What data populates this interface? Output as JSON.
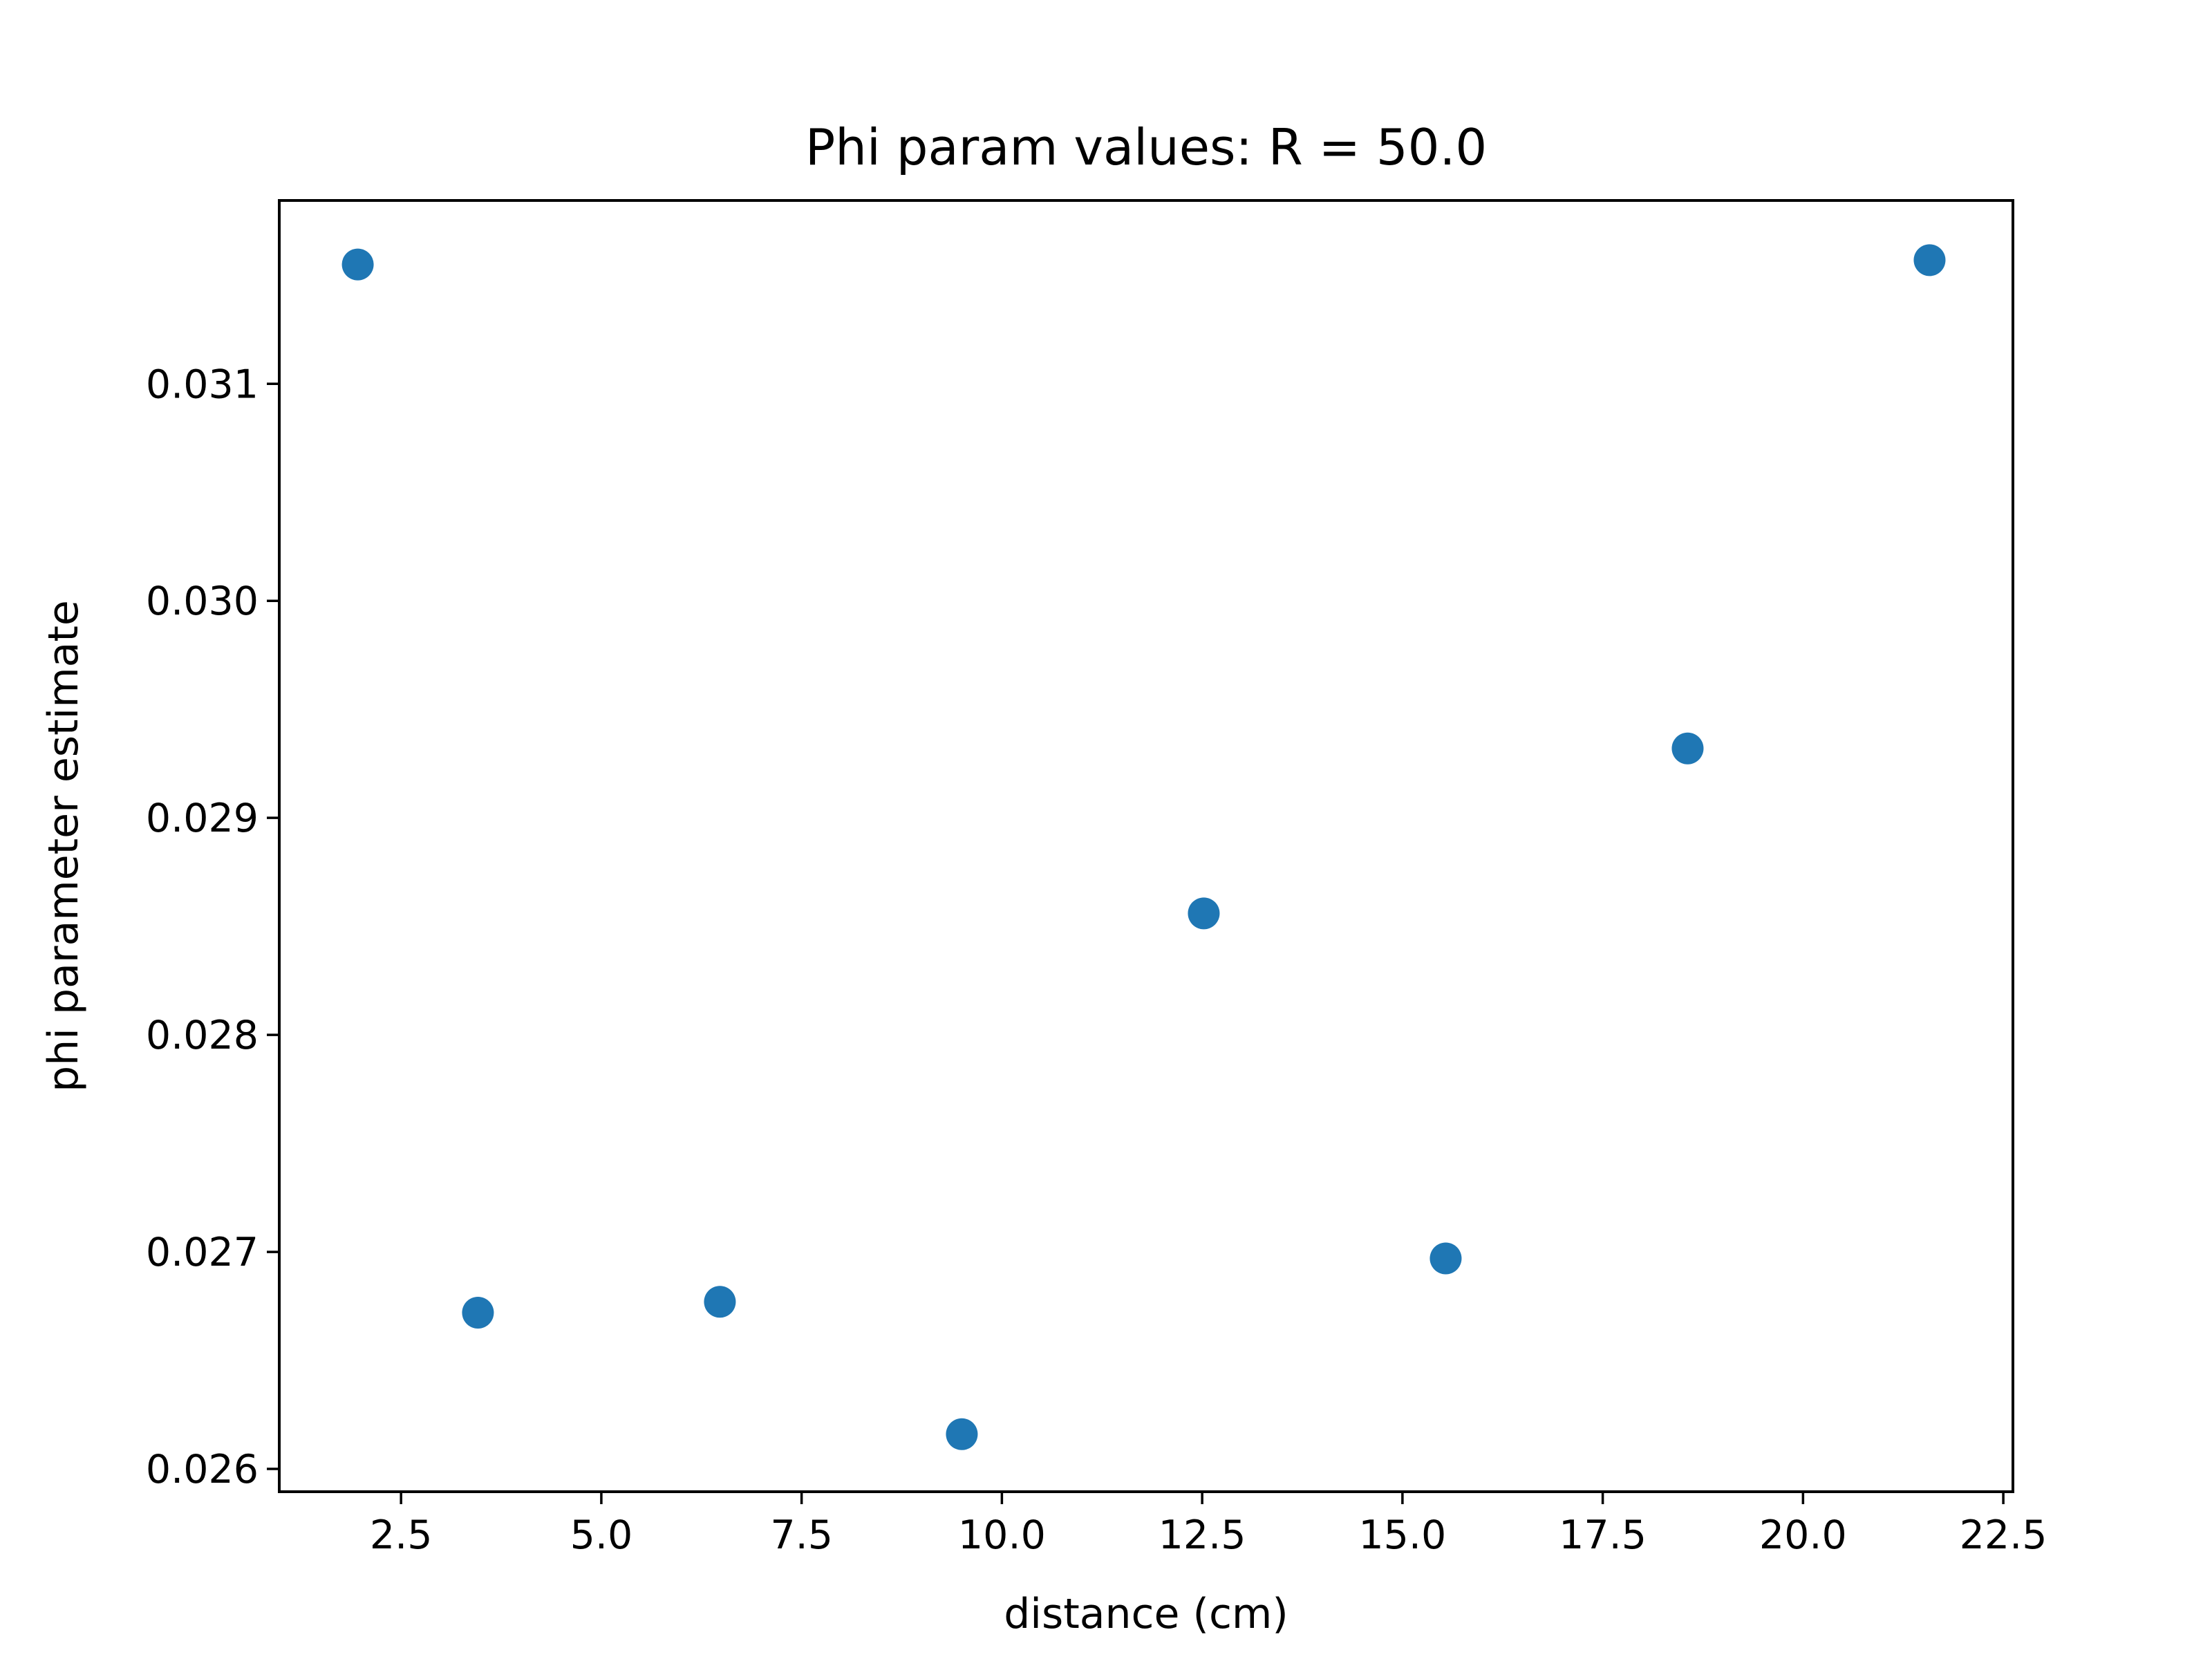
{
  "chart_data": {
    "type": "scatter",
    "title": "Phi param values: R = 50.0",
    "xlabel": "distance (cm)",
    "ylabel": "phi parameter estimate",
    "xlim": [
      0.98,
      22.62
    ],
    "ylim": [
      0.025895,
      0.031845
    ],
    "xticks": [
      2.5,
      5.0,
      7.5,
      10.0,
      12.5,
      15.0,
      17.5,
      20.0,
      22.5
    ],
    "xtick_labels": [
      "2.5",
      "5.0",
      "7.5",
      "10.0",
      "12.5",
      "15.0",
      "17.5",
      "20.0",
      "22.5"
    ],
    "yticks": [
      0.026,
      0.027,
      0.028,
      0.029,
      0.03,
      0.031
    ],
    "ytick_labels": [
      "0.026",
      "0.027",
      "0.028",
      "0.029",
      "0.030",
      "0.031"
    ],
    "grid": false,
    "marker_color": "#1f77b4",
    "series": [
      {
        "x": [
          1.96,
          3.46,
          6.48,
          9.5,
          12.52,
          15.54,
          18.56,
          21.58
        ],
        "y": [
          0.03155,
          0.02672,
          0.02677,
          0.02616,
          0.02856,
          0.02697,
          0.02932,
          0.03157
        ]
      }
    ]
  }
}
